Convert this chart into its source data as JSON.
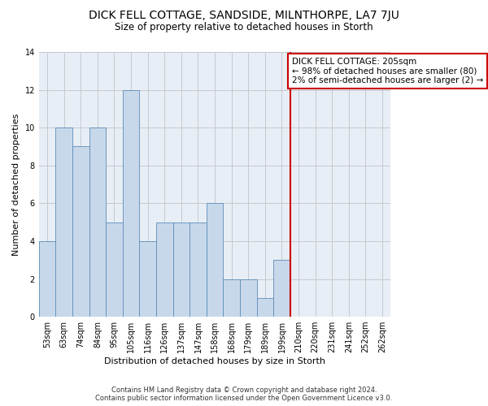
{
  "title": "DICK FELL COTTAGE, SANDSIDE, MILNTHORPE, LA7 7JU",
  "subtitle": "Size of property relative to detached houses in Storth",
  "xlabel": "Distribution of detached houses by size in Storth",
  "ylabel": "Number of detached properties",
  "categories": [
    "53sqm",
    "63sqm",
    "74sqm",
    "84sqm",
    "95sqm",
    "105sqm",
    "116sqm",
    "126sqm",
    "137sqm",
    "147sqm",
    "158sqm",
    "168sqm",
    "179sqm",
    "189sqm",
    "199sqm",
    "210sqm",
    "220sqm",
    "231sqm",
    "241sqm",
    "252sqm",
    "262sqm"
  ],
  "values": [
    4,
    10,
    9,
    10,
    5,
    12,
    4,
    5,
    5,
    5,
    6,
    2,
    2,
    1,
    3,
    0,
    0,
    0,
    0,
    0,
    0
  ],
  "bar_color": "#c8d8eb",
  "bar_edge_color": "#5b8db8",
  "vline_color": "#cc0000",
  "annotation_text": "DICK FELL COTTAGE: 205sqm\n← 98% of detached houses are smaller (80)\n2% of semi-detached houses are larger (2) →",
  "annotation_box_color": "#cc0000",
  "ylim": [
    0,
    14
  ],
  "yticks": [
    0,
    2,
    4,
    6,
    8,
    10,
    12,
    14
  ],
  "grid_color": "#c8c8d0",
  "bg_color": "#e8eef5",
  "footer_line1": "Contains HM Land Registry data © Crown copyright and database right 2024.",
  "footer_line2": "Contains public sector information licensed under the Open Government Licence v3.0."
}
